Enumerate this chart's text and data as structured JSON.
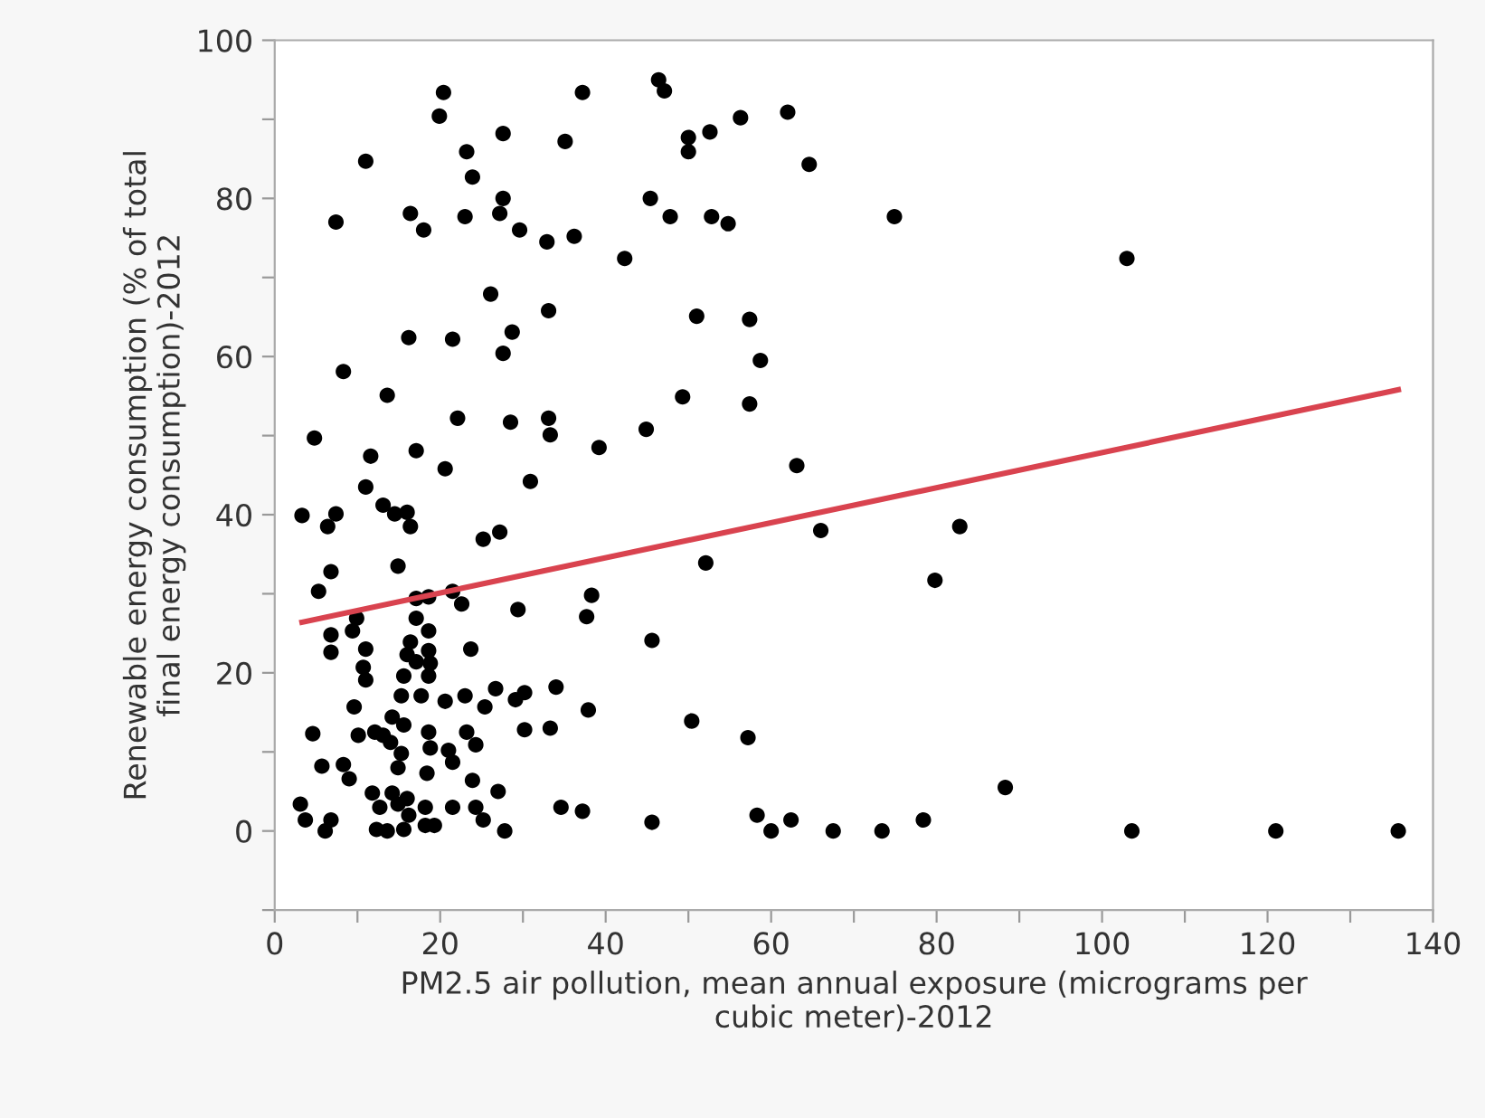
{
  "chart_data": {
    "type": "scatter",
    "xlabel": "PM2.5 air pollution, mean annual exposure (micrograms per\ncubic meter)-2012",
    "ylabel": "Renewable energy consumption (% of total\nfinal energy consumption)-2012",
    "xlim": [
      0,
      140
    ],
    "ylim": [
      -10,
      100
    ],
    "xticks": [
      0,
      {
        "value": 10,
        "label": null
      },
      20,
      {
        "value": 30,
        "label": null
      },
      40,
      {
        "value": 50,
        "label": null
      },
      60,
      {
        "value": 70,
        "label": null
      },
      80,
      {
        "value": 90,
        "label": null
      },
      100,
      {
        "value": 110,
        "label": null
      },
      120,
      {
        "value": 130,
        "label": null
      },
      140
    ],
    "yticks": [
      {
        "value": -10,
        "label": null
      },
      0,
      {
        "value": 10,
        "label": null
      },
      20,
      {
        "value": 30,
        "label": null
      },
      40,
      {
        "value": 50,
        "label": null
      },
      60,
      {
        "value": 70,
        "label": null
      },
      80,
      {
        "value": 90,
        "label": null
      },
      100
    ],
    "series": [
      {
        "color": "#000000",
        "marker": "circle",
        "x": [
          20.4,
          19.9,
          37.2,
          46.4,
          47.1,
          11,
          27.6,
          35.1,
          23.2,
          23.9,
          7.4,
          16.4,
          18,
          23,
          27.2,
          27.6,
          29.6,
          32.9,
          36.2,
          42.3,
          45.4,
          47.8,
          26.1,
          33.1,
          16.2,
          21.5,
          28.7,
          27.6,
          8.3,
          13.6,
          22.1,
          28.5,
          33.1,
          33.3,
          44.9,
          4.8,
          39.2,
          11.6,
          17.1,
          56.3,
          62,
          50,
          50,
          52.6,
          64.6,
          52.8,
          54.8,
          74.9,
          103,
          51,
          57.4,
          58.7,
          49.3,
          57.4,
          63.1,
          66,
          82.8,
          52.1,
          79.8,
          45.6,
          50.4,
          57.2,
          88.3,
          45.6,
          58.3,
          60,
          62.4,
          67.5,
          73.4,
          78.4,
          103.6,
          121,
          135.8,
          20.6,
          30.9,
          3.3,
          6.4,
          7.4,
          11,
          13.1,
          14.5,
          16,
          16.4,
          25.2,
          27.2,
          6.8,
          5.3,
          14.9,
          17.1,
          18.6,
          17.1,
          18.6,
          21.5,
          22.6,
          29.4,
          38.3,
          37.7,
          6.8,
          6.8,
          9.9,
          9.4,
          11,
          10.7,
          11,
          16.4,
          16,
          17.1,
          18.6,
          18.8,
          18.6,
          15.6,
          23.7,
          9.6,
          15.3,
          17.7,
          20.6,
          23,
          25.4,
          26.7,
          29.1,
          30.2,
          34,
          37.9,
          4.6,
          10.1,
          12.1,
          13.1,
          14.2,
          14,
          15.6,
          15.3,
          18.6,
          18.8,
          21,
          21.5,
          23.2,
          24.3,
          30.2,
          33.3,
          5.7,
          8.3,
          9,
          14.9,
          18.4,
          23.9,
          27,
          3.1,
          3.7,
          6.1,
          6.8,
          11.8,
          12.7,
          12.3,
          13.6,
          14.2,
          14.9,
          16,
          16.2,
          15.6,
          18.2,
          18.2,
          19.3,
          21.5,
          24.3,
          25.2,
          27.8,
          34.6,
          37.2
        ],
        "values": [
          93.4,
          90.4,
          93.4,
          95,
          93.6,
          84.7,
          88.2,
          87.2,
          85.9,
          82.7,
          77,
          78.1,
          76,
          77.7,
          78.1,
          80,
          76,
          74.5,
          75.2,
          72.4,
          80,
          77.7,
          67.9,
          65.8,
          62.4,
          62.2,
          63.1,
          60.4,
          58.1,
          55.1,
          52.2,
          51.7,
          52.2,
          50.1,
          50.8,
          49.7,
          48.5,
          47.4,
          48.1,
          90.2,
          90.9,
          87.7,
          85.9,
          88.4,
          84.3,
          77.7,
          76.8,
          77.7,
          72.4,
          65.1,
          64.7,
          59.5,
          54.9,
          54,
          46.2,
          38,
          38.5,
          33.9,
          31.7,
          24.1,
          13.9,
          11.8,
          5.5,
          1.1,
          2,
          0,
          1.4,
          0,
          0,
          1.4,
          0,
          0,
          0,
          45.8,
          44.2,
          39.9,
          38.5,
          40.1,
          43.5,
          41.2,
          40.1,
          40.3,
          38.5,
          36.9,
          37.8,
          32.8,
          30.3,
          33.5,
          29.4,
          29.6,
          26.9,
          25.3,
          30.3,
          28.7,
          28,
          29.8,
          27.1,
          24.8,
          22.6,
          26.9,
          25.3,
          23,
          20.7,
          19.1,
          23.9,
          22.3,
          21.4,
          22.8,
          21.2,
          19.6,
          19.6,
          23,
          15.7,
          17.1,
          17.1,
          16.4,
          17.1,
          15.7,
          18,
          16.6,
          17.5,
          18.2,
          15.3,
          12.3,
          12.1,
          12.5,
          12.1,
          14.4,
          11.2,
          13.4,
          9.8,
          12.5,
          10.5,
          10.2,
          8.7,
          12.5,
          10.9,
          12.8,
          13,
          8.2,
          8.4,
          6.6,
          8,
          7.3,
          6.4,
          5,
          3.4,
          1.4,
          0,
          1.4,
          4.8,
          3,
          0.2,
          0,
          4.8,
          3.4,
          4.1,
          2,
          0.2,
          3,
          0.7,
          0.7,
          3,
          3,
          1.4,
          0,
          3,
          2.5
        ]
      },
      {
        "type": "line",
        "marker": "none",
        "color": "#d9434f",
        "x": [
          3.3,
          135.8
        ],
        "values": [
          26.4,
          55.8
        ]
      }
    ]
  }
}
